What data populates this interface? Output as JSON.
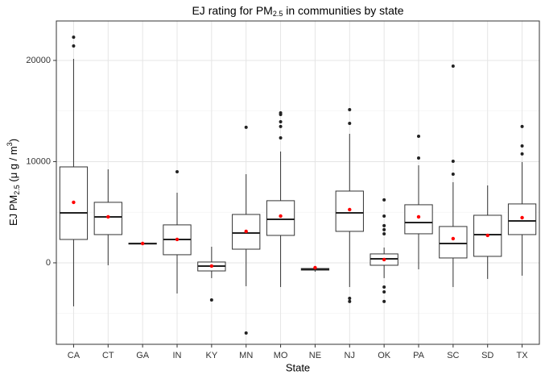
{
  "chart_data": {
    "type": "box",
    "title": {
      "text": "EJ rating for PM",
      "sub": "2.5",
      "rest": " in communities by state"
    },
    "xlabel": "State",
    "ylabel": {
      "text": "EJ PM",
      "sub": "2.5",
      "rest": " (μ g / m",
      "sup": "3",
      "end": ")"
    },
    "categories": [
      "CA",
      "CT",
      "GA",
      "IN",
      "KY",
      "MN",
      "MO",
      "NE",
      "NJ",
      "OK",
      "PA",
      "SC",
      "SD",
      "TX"
    ],
    "boxes": [
      {
        "whisker_low": -4300,
        "q1": 2310,
        "median": 4940,
        "q3": 9480,
        "whisker_high": 20160,
        "mean": 5980,
        "outliers": [
          22300,
          21430
        ]
      },
      {
        "whisker_low": -240,
        "q1": 2790,
        "median": 4540,
        "q3": 5980,
        "whisker_high": 9240,
        "mean": 4540,
        "outliers": []
      },
      {
        "whisker_low": 1850,
        "q1": 1850,
        "median": 1910,
        "q3": 1950,
        "whisker_high": 1950,
        "mean": 1910,
        "outliers": []
      },
      {
        "whisker_low": -3030,
        "q1": 800,
        "median": 2310,
        "q3": 3750,
        "whisker_high": 6930,
        "mean": 2310,
        "outliers": [
          9000
        ]
      },
      {
        "whisker_low": -1510,
        "q1": -800,
        "median": -320,
        "q3": 80,
        "whisker_high": 1590,
        "mean": -320,
        "outliers": [
          -3670
        ]
      },
      {
        "whisker_low": -2310,
        "q1": 1350,
        "median": 2950,
        "q3": 4780,
        "whisker_high": 8760,
        "mean": 3110,
        "outliers": [
          13390,
          -6930
        ]
      },
      {
        "whisker_low": -2390,
        "q1": 2710,
        "median": 4300,
        "q3": 6140,
        "whisker_high": 11000,
        "mean": 4620,
        "outliers": [
          14820,
          14660,
          13940,
          13470,
          12350
        ]
      },
      {
        "whisker_low": -880,
        "q1": -720,
        "median": -640,
        "q3": -560,
        "whisker_high": -480,
        "mean": -480,
        "outliers": []
      },
      {
        "whisker_low": -2390,
        "q1": 3110,
        "median": 4940,
        "q3": 7090,
        "whisker_high": 12750,
        "mean": 5260,
        "outliers": [
          15140,
          13780,
          -3510,
          -3820
        ]
      },
      {
        "whisker_low": -1510,
        "q1": -240,
        "median": 400,
        "q3": 880,
        "whisker_high": 1510,
        "mean": 320,
        "outliers": [
          6220,
          4620,
          3670,
          3270,
          2870,
          -2390,
          -2870,
          -3820
        ]
      },
      {
        "whisker_low": -640,
        "q1": 2870,
        "median": 3980,
        "q3": 5740,
        "whisker_high": 9640,
        "mean": 4540,
        "outliers": [
          10360,
          12510
        ]
      },
      {
        "whisker_low": -2390,
        "q1": 480,
        "median": 1910,
        "q3": 3590,
        "whisker_high": 7970,
        "mean": 2390,
        "outliers": [
          19440,
          10040,
          8760
        ]
      },
      {
        "whisker_low": -1590,
        "q1": 640,
        "median": 2790,
        "q3": 4700,
        "whisker_high": 7650,
        "mean": 2710,
        "outliers": []
      },
      {
        "whisker_low": -1270,
        "q1": 2790,
        "median": 4140,
        "q3": 5820,
        "whisker_high": 9960,
        "mean": 4460,
        "outliers": [
          13470,
          11550,
          10760
        ]
      }
    ],
    "box_color": "#333333",
    "mean_color": "#ff0000",
    "outlier_color": "#222222",
    "ylim": [
      -8050,
      23900
    ],
    "yticks": [
      0,
      10000,
      20000
    ],
    "minor_yticks": [
      -5000,
      5000,
      15000
    ],
    "grid": true
  }
}
